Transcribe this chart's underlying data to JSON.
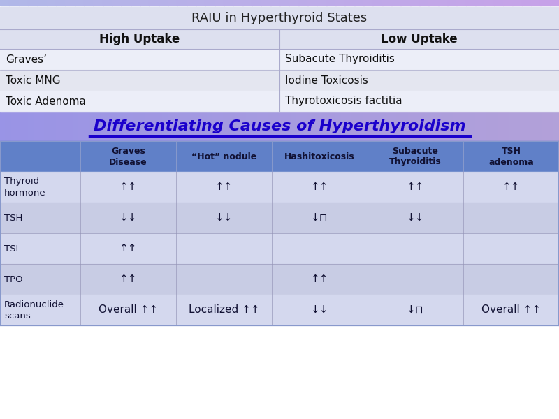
{
  "raiu_title": "RAIU in Hyperthyroid States",
  "raiu_table": {
    "headers": [
      "High Uptake",
      "Low Uptake"
    ],
    "rows": [
      [
        "Graves’",
        "Subacute Thyroiditis"
      ],
      [
        "Toxic MNG",
        "Iodine Toxicosis"
      ],
      [
        "Toxic Adenoma",
        "Thyrotoxicosis factitia"
      ]
    ]
  },
  "diff_title": "Differentiating Causes of Hyperthyroidism",
  "diff_title_color": "#1a00cc",
  "diff_table": {
    "col_headers": [
      "",
      "Graves\nDisease",
      "“Hot” nodule",
      "Hashitoxicosis",
      "Subacute\nThyroiditis",
      "TSH\nadenoma"
    ],
    "rows": [
      [
        "Thyroid\nhormone",
        "↑↑",
        "↑↑",
        "↑↑",
        "↑↑",
        "↑↑"
      ],
      [
        "TSH",
        "↓↓",
        "↓↓",
        "↓⊓",
        "↓↓",
        ""
      ],
      [
        "TSI",
        "↑↑",
        "",
        "",
        "",
        ""
      ],
      [
        "TPO",
        "↑↑",
        "",
        "↑↑",
        "",
        ""
      ],
      [
        "Radionuclide\nscans",
        "Overall ↑↑",
        "Localized ↑↑",
        "↓↓",
        "↓⊓",
        "Overall ↑↑"
      ]
    ]
  },
  "fig_width": 8.0,
  "fig_height": 6.0,
  "dpi": 100
}
